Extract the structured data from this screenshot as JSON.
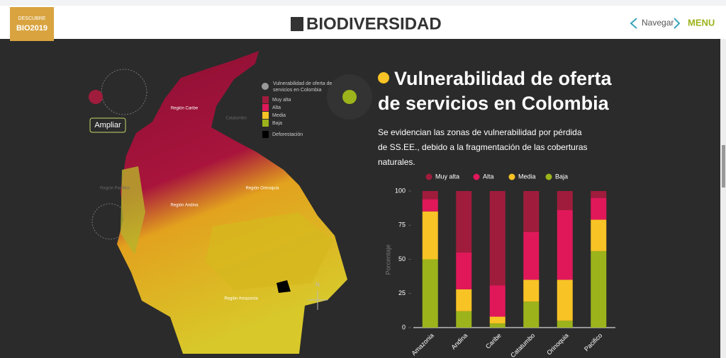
{
  "header": {
    "badge": [
      "DESCUBRE",
      "BIO2019"
    ],
    "logo": "BIODIVERSIDAD",
    "nav": "Navegar",
    "menu": "MENU"
  },
  "map": {
    "legend_title": "Vulnerabilidad de oferta de servicios en Colombia",
    "legend_items": [
      "Muy alta",
      "Alta",
      "Media",
      "Baja",
      "Deforestación"
    ],
    "button": "Ampliar",
    "regions": [
      "Región Caribe",
      "Catatumbo",
      "Región Pacífico",
      "Región Andina",
      "Región Orinoquía",
      "Región Amazonía"
    ],
    "compass": "N"
  },
  "panel": {
    "heading": "Vulnerabilidad de oferta de servicios en Colombia",
    "text": "Se evidencian las zonas de vulnerabilidad por pérdida de SS.EE., debido a la fragmentación de las coberturas naturales."
  },
  "chart_data": {
    "type": "stacked_bar",
    "y_label": "Porcentaje",
    "categories": [
      "Amazonia",
      "Andina",
      "Caribe",
      "Catatumbo",
      "Orinoquia",
      "Pacifico"
    ],
    "series": [
      {
        "name": "Muy alta",
        "color": "#a01c3c",
        "values": [
          6,
          45,
          69,
          30,
          14,
          5
        ]
      },
      {
        "name": "Alta",
        "color": "#e0185a",
        "values": [
          9,
          27,
          23,
          35,
          51,
          16
        ]
      },
      {
        "name": "Media",
        "color": "#f7c325",
        "values": [
          35,
          16,
          5,
          16,
          30,
          23
        ]
      },
      {
        "name": "Baja",
        "color": "#9cb31b",
        "values": [
          50,
          12,
          3,
          19,
          5,
          56
        ]
      }
    ],
    "ylim": [
      0,
      100
    ],
    "yticks": [
      0,
      25,
      50,
      75,
      100
    ]
  }
}
